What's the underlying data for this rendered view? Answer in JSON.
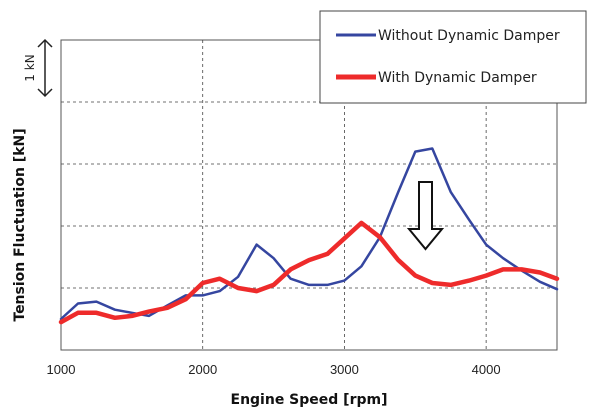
{
  "chart_data": {
    "type": "line",
    "xlabel": "Engine Speed  [rpm]",
    "ylabel": "Tension Fluctuation   [kN]",
    "xlim": [
      1000,
      4500
    ],
    "xticks": [
      "1000",
      "2000",
      "3000",
      "4000"
    ],
    "ylim": [
      0,
      5
    ],
    "grid": true,
    "legend_position": "top-right",
    "scale_annotation": "1 kN",
    "series": [
      {
        "name": "Without Dynamic Damper",
        "color": "#3546a0",
        "x": [
          1000,
          1120,
          1250,
          1380,
          1500,
          1620,
          1750,
          1880,
          2000,
          2120,
          2250,
          2380,
          2500,
          2620,
          2750,
          2880,
          3000,
          3120,
          3250,
          3380,
          3500,
          3620,
          3750,
          3880,
          4000,
          4120,
          4250,
          4380,
          4500
        ],
        "y": [
          0.5,
          0.75,
          0.78,
          0.65,
          0.6,
          0.55,
          0.72,
          0.88,
          0.88,
          0.95,
          1.18,
          1.7,
          1.48,
          1.15,
          1.05,
          1.05,
          1.12,
          1.35,
          1.82,
          2.55,
          3.2,
          3.25,
          2.55,
          2.1,
          1.7,
          1.48,
          1.28,
          1.1,
          0.98
        ]
      },
      {
        "name": "With Dynamic Damper",
        "color": "#ee2b2b",
        "x": [
          1000,
          1120,
          1250,
          1380,
          1500,
          1620,
          1750,
          1880,
          2000,
          2120,
          2250,
          2380,
          2500,
          2620,
          2750,
          2880,
          3000,
          3120,
          3250,
          3380,
          3500,
          3620,
          3750,
          3880,
          4000,
          4120,
          4250,
          4380,
          4500
        ],
        "y": [
          0.45,
          0.6,
          0.6,
          0.52,
          0.55,
          0.62,
          0.68,
          0.82,
          1.08,
          1.15,
          1.0,
          0.95,
          1.05,
          1.3,
          1.45,
          1.55,
          1.8,
          2.05,
          1.82,
          1.45,
          1.2,
          1.08,
          1.05,
          1.12,
          1.2,
          1.3,
          1.3,
          1.25,
          1.15
        ]
      }
    ]
  }
}
